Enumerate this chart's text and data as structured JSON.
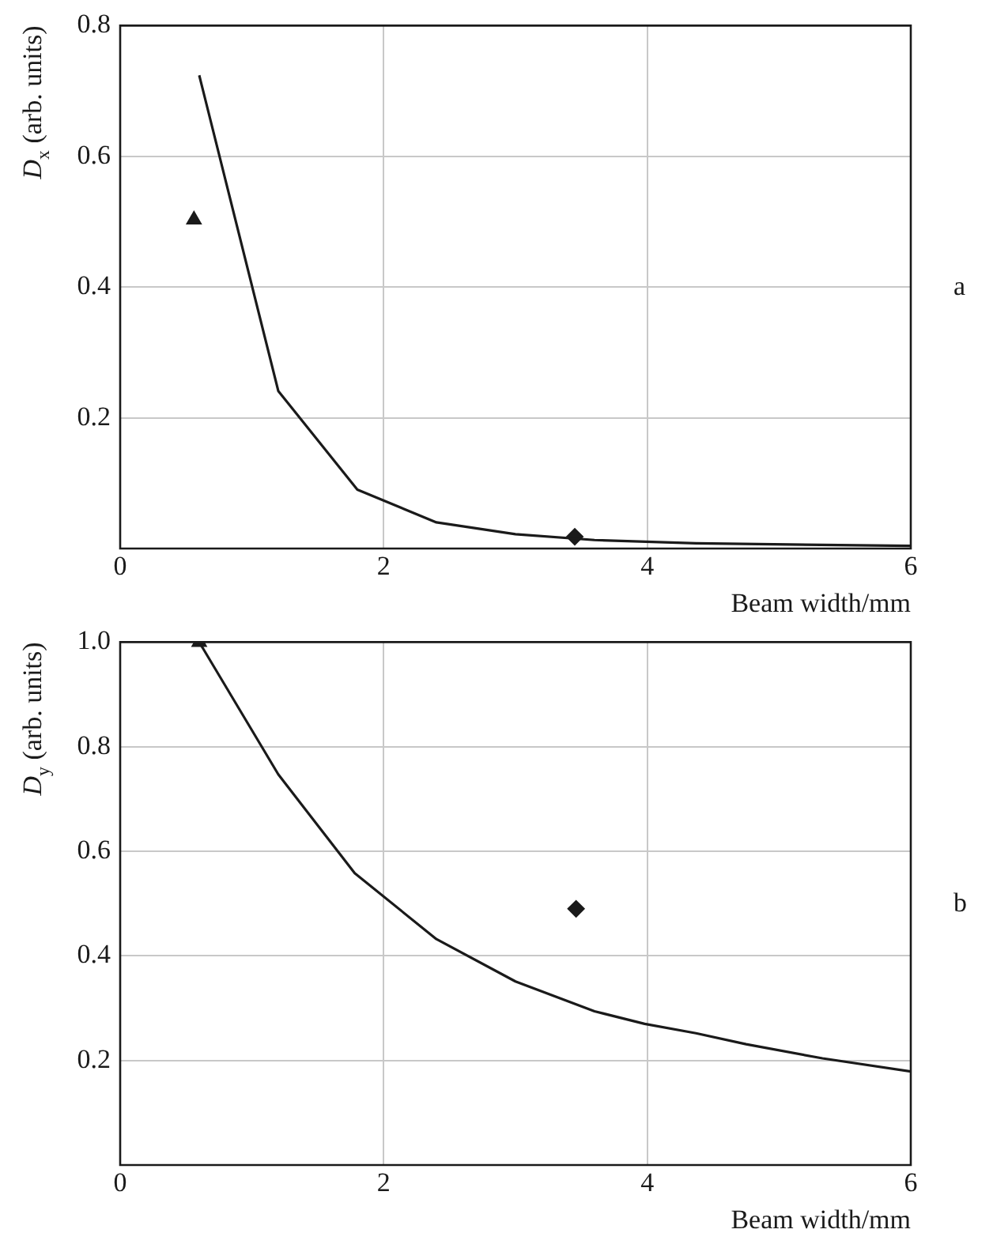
{
  "chart_data": [
    {
      "type": "line",
      "xlabel": "Beam width/mm",
      "ylabel": "D$_{x}$ (arb. units)",
      "annotations": [
        "a"
      ],
      "xlim": [
        0,
        6
      ],
      "xticks": [
        0,
        2,
        4,
        6
      ],
      "ylim": [
        0,
        0.8
      ],
      "yticks": [
        0.2,
        0.4,
        0.6,
        0.8
      ],
      "grid": true,
      "legend": false,
      "series": [
        {
          "color": "#1a1a1a",
          "marker": "none",
          "x": [
            0.6,
            1.2,
            1.8,
            2.4,
            3.0,
            3.6,
            4.37,
            6.0
          ],
          "values": [
            0.724,
            0.241,
            0.09,
            0.04,
            0.022,
            0.013,
            0.008,
            0.004
          ]
        },
        {
          "type": "scatter",
          "color": "#1a1a1a",
          "marker": "triangle",
          "x": [
            0.56
          ],
          "values": [
            0.503
          ]
        },
        {
          "type": "scatter",
          "color": "#1a1a1a",
          "marker": "diamond",
          "x": [
            3.45
          ],
          "values": [
            0.018
          ]
        }
      ]
    },
    {
      "type": "line",
      "xlabel": "Beam width/mm",
      "ylabel": "D$_{y}$ (arb. units)",
      "annotations": [
        "b"
      ],
      "xlim": [
        0,
        6
      ],
      "xticks": [
        0,
        2,
        4,
        6
      ],
      "ylim": [
        0,
        1.0
      ],
      "yticks": [
        0.2,
        0.4,
        0.6,
        0.8,
        {
          "value": 1.0,
          "label": "1.0"
        }
      ],
      "grid": true,
      "legend": false,
      "series": [
        {
          "color": "#1a1a1a",
          "marker": "none",
          "x": [
            0.6,
            1.2,
            1.78,
            2.4,
            3.0,
            3.6,
            3.98,
            4.37,
            4.75,
            5.33,
            6.0
          ],
          "values": [
            1.0,
            0.747,
            0.558,
            0.432,
            0.351,
            0.294,
            0.27,
            0.252,
            0.231,
            0.204,
            0.179
          ]
        },
        {
          "type": "scatter",
          "color": "#1a1a1a",
          "marker": "triangle",
          "x": [
            0.6
          ],
          "values": [
            1.0
          ]
        },
        {
          "type": "scatter",
          "color": "#1a1a1a",
          "marker": "diamond",
          "x": [
            3.46
          ],
          "values": [
            0.49
          ]
        }
      ]
    }
  ]
}
